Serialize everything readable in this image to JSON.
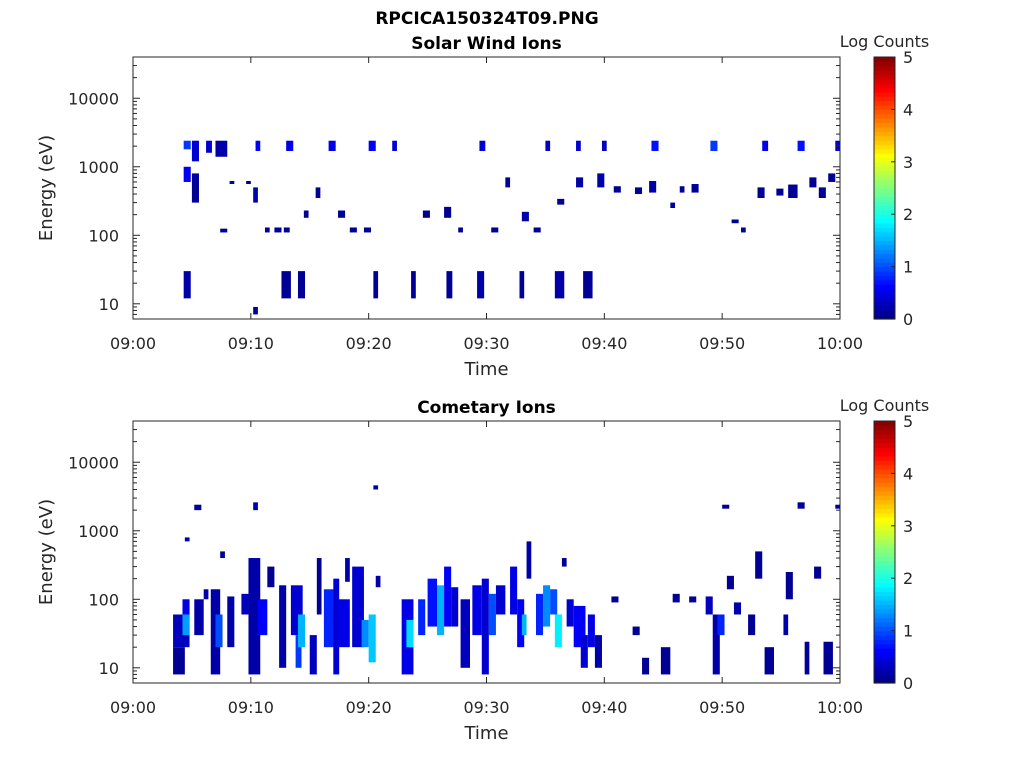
{
  "figure_title": "RPCICA150324T09.PNG",
  "chart_data": [
    {
      "type": "heatmap",
      "title": "Solar Wind Ions",
      "xlabel": "Time",
      "ylabel": "Energy (eV)",
      "x_range": [
        "09:00",
        "10:00"
      ],
      "ylim": [
        6,
        40000
      ],
      "yscale": "log",
      "xticks": [
        "09:00",
        "09:10",
        "09:20",
        "09:30",
        "09:40",
        "09:50",
        "10:00"
      ],
      "yticks": [
        "10",
        "100",
        "1000",
        "10000"
      ],
      "colorbar": {
        "label": "Log Counts",
        "min": 0,
        "max": 5,
        "ticks": [
          "0",
          "1",
          "2",
          "3",
          "4",
          "5"
        ]
      },
      "cells": [
        [
          4.3,
          4.9,
          12,
          30,
          0.2
        ],
        [
          4.3,
          4.9,
          600,
          1000,
          0.6
        ],
        [
          4.3,
          4.9,
          1800,
          2400,
          0.9
        ],
        [
          5.0,
          5.6,
          1200,
          2400,
          0.4
        ],
        [
          5.0,
          5.6,
          300,
          800,
          0.1
        ],
        [
          6.2,
          6.7,
          1600,
          2400,
          0.4
        ],
        [
          7.0,
          8.0,
          1400,
          2400,
          0.2
        ],
        [
          7.4,
          8.0,
          110,
          125,
          0.1
        ],
        [
          8.2,
          8.6,
          560,
          620,
          0.1
        ],
        [
          9.6,
          10.0,
          560,
          620,
          0.1
        ],
        [
          10.2,
          10.6,
          300,
          500,
          0.2
        ],
        [
          10.4,
          10.8,
          1700,
          2400,
          0.6
        ],
        [
          10.2,
          10.6,
          7,
          9,
          0.1
        ],
        [
          11.2,
          11.6,
          110,
          130,
          0.1
        ],
        [
          12.0,
          12.6,
          110,
          130,
          0.1
        ],
        [
          12.8,
          13.3,
          110,
          130,
          0.1
        ],
        [
          12.6,
          13.4,
          12,
          30,
          0.1
        ],
        [
          13.0,
          13.6,
          1700,
          2400,
          0.5
        ],
        [
          14.0,
          14.6,
          12,
          30,
          0.1
        ],
        [
          14.5,
          14.9,
          180,
          230,
          0.1
        ],
        [
          15.5,
          15.9,
          350,
          500,
          0.1
        ],
        [
          16.6,
          17.2,
          1700,
          2400,
          0.5
        ],
        [
          17.4,
          18.0,
          180,
          230,
          0.1
        ],
        [
          18.4,
          19.0,
          110,
          130,
          0.1
        ],
        [
          19.6,
          20.2,
          110,
          130,
          0.1
        ],
        [
          20.0,
          20.6,
          1700,
          2400,
          0.6
        ],
        [
          20.4,
          20.8,
          12,
          30,
          0.1
        ],
        [
          22.0,
          22.4,
          1700,
          2400,
          0.4
        ],
        [
          23.6,
          24.0,
          12,
          30,
          0.1
        ],
        [
          24.6,
          25.2,
          180,
          230,
          0.1
        ],
        [
          26.4,
          27.0,
          180,
          260,
          0.1
        ],
        [
          26.6,
          27.1,
          12,
          30,
          0.1
        ],
        [
          27.6,
          28.0,
          110,
          130,
          0.1
        ],
        [
          29.2,
          29.8,
          12,
          30,
          0.2
        ],
        [
          29.4,
          29.9,
          1700,
          2400,
          0.4
        ],
        [
          30.4,
          31.0,
          110,
          130,
          0.1
        ],
        [
          31.6,
          32.0,
          500,
          700,
          0.1
        ],
        [
          32.8,
          33.2,
          12,
          30,
          0.1
        ],
        [
          33.0,
          33.6,
          160,
          220,
          0.2
        ],
        [
          34.0,
          34.6,
          110,
          130,
          0.1
        ],
        [
          35.0,
          35.4,
          1700,
          2400,
          0.3
        ],
        [
          35.8,
          36.6,
          12,
          30,
          0.2
        ],
        [
          36.0,
          36.6,
          280,
          340,
          0.1
        ],
        [
          37.6,
          38.0,
          1700,
          2400,
          0.4
        ],
        [
          37.6,
          38.2,
          500,
          700,
          0.2
        ],
        [
          38.2,
          39.0,
          12,
          30,
          0.1
        ],
        [
          39.4,
          40.0,
          500,
          800,
          0.2
        ],
        [
          39.8,
          40.2,
          1700,
          2400,
          0.3
        ],
        [
          40.8,
          41.4,
          420,
          520,
          0.1
        ],
        [
          42.6,
          43.2,
          400,
          500,
          0.1
        ],
        [
          43.8,
          44.4,
          420,
          620,
          0.2
        ],
        [
          44.0,
          44.6,
          1700,
          2400,
          0.7
        ],
        [
          45.6,
          46.0,
          250,
          300,
          0.1
        ],
        [
          46.4,
          46.8,
          420,
          520,
          0.1
        ],
        [
          47.4,
          48.0,
          420,
          560,
          0.1
        ],
        [
          49.0,
          49.6,
          1700,
          2400,
          0.9
        ],
        [
          50.8,
          51.4,
          150,
          170,
          0.1
        ],
        [
          51.6,
          52.0,
          110,
          130,
          0.1
        ],
        [
          53.0,
          53.6,
          350,
          500,
          0.1
        ],
        [
          53.4,
          53.9,
          1700,
          2400,
          0.5
        ],
        [
          54.6,
          55.2,
          380,
          480,
          0.1
        ],
        [
          55.6,
          56.4,
          350,
          550,
          0.1
        ],
        [
          56.4,
          57.0,
          1700,
          2400,
          0.7
        ],
        [
          57.4,
          58.0,
          500,
          700,
          0.1
        ],
        [
          58.2,
          58.8,
          350,
          500,
          0.1
        ],
        [
          59.0,
          59.6,
          600,
          800,
          0.1
        ],
        [
          59.6,
          60.0,
          1700,
          2400,
          0.4
        ]
      ]
    },
    {
      "type": "heatmap",
      "title": "Cometary Ions",
      "xlabel": "Time",
      "ylabel": "Energy (eV)",
      "x_range": [
        "09:00",
        "10:00"
      ],
      "ylim": [
        6,
        40000
      ],
      "yscale": "log",
      "xticks": [
        "09:00",
        "09:10",
        "09:20",
        "09:30",
        "09:40",
        "09:50",
        "10:00"
      ],
      "yticks": [
        "10",
        "100",
        "1000",
        "10000"
      ],
      "colorbar": {
        "label": "Log Counts",
        "min": 0,
        "max": 5,
        "ticks": [
          "0",
          "1",
          "2",
          "3",
          "4",
          "5"
        ]
      },
      "cells": [
        [
          3.4,
          4.4,
          8,
          20,
          0.1
        ],
        [
          3.4,
          4.8,
          20,
          60,
          0.3
        ],
        [
          4.2,
          4.8,
          30,
          60,
          1.4
        ],
        [
          4.2,
          4.8,
          60,
          100,
          0.5
        ],
        [
          4.4,
          4.8,
          700,
          800,
          0.2
        ],
        [
          5.2,
          5.8,
          2000,
          2400,
          0.1
        ],
        [
          5.2,
          6.0,
          30,
          100,
          0.2
        ],
        [
          6.0,
          6.4,
          100,
          140,
          0.2
        ],
        [
          6.6,
          7.4,
          8,
          140,
          0.2
        ],
        [
          7.0,
          7.6,
          20,
          60,
          1.0
        ],
        [
          7.4,
          7.8,
          400,
          500,
          0.1
        ],
        [
          8.0,
          8.6,
          20,
          110,
          0.2
        ],
        [
          9.2,
          9.8,
          60,
          120,
          0.3
        ],
        [
          9.8,
          10.8,
          8,
          400,
          0.2
        ],
        [
          10.2,
          10.6,
          2000,
          2600,
          0.2
        ],
        [
          10.6,
          11.4,
          30,
          100,
          0.6
        ],
        [
          11.4,
          12.0,
          150,
          300,
          0.1
        ],
        [
          12.4,
          13.0,
          10,
          160,
          0.2
        ],
        [
          13.4,
          14.4,
          30,
          160,
          0.4
        ],
        [
          13.8,
          14.3,
          10,
          30,
          0.9
        ],
        [
          14.0,
          14.6,
          20,
          60,
          1.5
        ],
        [
          15.0,
          15.6,
          8,
          30,
          0.3
        ],
        [
          15.6,
          16.0,
          60,
          400,
          0.1
        ],
        [
          16.2,
          17.2,
          20,
          140,
          0.8
        ],
        [
          17.0,
          17.5,
          8,
          200,
          0.4
        ],
        [
          17.4,
          18.4,
          20,
          100,
          0.5
        ],
        [
          18.0,
          18.4,
          180,
          400,
          0.2
        ],
        [
          18.6,
          19.6,
          20,
          300,
          0.4
        ],
        [
          19.4,
          20.0,
          20,
          50,
          1.3
        ],
        [
          20.0,
          20.6,
          12,
          60,
          1.6
        ],
        [
          20.4,
          20.8,
          4000,
          4600,
          0.1
        ],
        [
          20.6,
          21.0,
          150,
          220,
          0.2
        ],
        [
          22.8,
          23.8,
          8,
          100,
          0.5
        ],
        [
          23.2,
          23.8,
          20,
          50,
          1.7
        ],
        [
          24.2,
          24.8,
          30,
          100,
          0.8
        ],
        [
          25.0,
          25.8,
          40,
          200,
          0.7
        ],
        [
          25.8,
          26.4,
          30,
          160,
          1.5
        ],
        [
          26.4,
          27.0,
          40,
          300,
          0.6
        ],
        [
          27.0,
          27.6,
          40,
          150,
          0.4
        ],
        [
          27.8,
          28.6,
          10,
          100,
          0.3
        ],
        [
          28.8,
          29.6,
          30,
          160,
          0.5
        ],
        [
          29.6,
          30.2,
          8,
          200,
          0.4
        ],
        [
          30.2,
          30.8,
          30,
          120,
          1.0
        ],
        [
          30.8,
          31.6,
          60,
          160,
          0.4
        ],
        [
          32.0,
          32.6,
          60,
          300,
          0.5
        ],
        [
          32.6,
          33.2,
          20,
          100,
          0.6
        ],
        [
          33.0,
          33.4,
          30,
          60,
          1.5
        ],
        [
          33.4,
          33.8,
          200,
          700,
          0.2
        ],
        [
          34.2,
          34.8,
          30,
          120,
          0.8
        ],
        [
          34.8,
          35.4,
          40,
          160,
          1.3
        ],
        [
          35.4,
          36.0,
          60,
          140,
          1.0
        ],
        [
          35.8,
          36.4,
          20,
          60,
          1.8
        ],
        [
          36.4,
          36.8,
          300,
          400,
          0.1
        ],
        [
          36.8,
          37.4,
          40,
          100,
          0.4
        ],
        [
          37.4,
          38.4,
          20,
          80,
          0.6
        ],
        [
          38.0,
          38.6,
          10,
          30,
          0.4
        ],
        [
          38.6,
          39.2,
          20,
          60,
          0.5
        ],
        [
          39.2,
          39.8,
          10,
          30,
          0.2
        ],
        [
          40.6,
          41.2,
          90,
          110,
          0.1
        ],
        [
          42.4,
          43.0,
          30,
          40,
          0.1
        ],
        [
          43.2,
          43.8,
          8,
          14,
          0.1
        ],
        [
          44.8,
          45.6,
          8,
          20,
          0.1
        ],
        [
          45.8,
          46.4,
          90,
          120,
          0.1
        ],
        [
          47.2,
          47.8,
          90,
          110,
          0.1
        ],
        [
          48.6,
          49.2,
          60,
          110,
          0.3
        ],
        [
          49.2,
          49.8,
          8,
          60,
          0.2
        ],
        [
          49.6,
          50.2,
          30,
          60,
          0.8
        ],
        [
          50.0,
          50.6,
          2100,
          2400,
          0.1
        ],
        [
          50.4,
          51.0,
          140,
          220,
          0.1
        ],
        [
          51.0,
          51.6,
          60,
          90,
          0.2
        ],
        [
          52.2,
          52.8,
          30,
          60,
          0.1
        ],
        [
          52.8,
          53.4,
          200,
          500,
          0.1
        ],
        [
          53.6,
          54.4,
          8,
          20,
          0.1
        ],
        [
          55.2,
          55.6,
          30,
          60,
          0.2
        ],
        [
          55.4,
          56.0,
          100,
          250,
          0.1
        ],
        [
          56.4,
          57.0,
          2100,
          2600,
          0.1
        ],
        [
          57.0,
          57.4,
          8,
          24,
          0.1
        ],
        [
          57.8,
          58.4,
          200,
          300,
          0.1
        ],
        [
          58.6,
          59.4,
          8,
          24,
          0.1
        ],
        [
          59.6,
          60.0,
          2100,
          2400,
          0.1
        ]
      ]
    }
  ]
}
